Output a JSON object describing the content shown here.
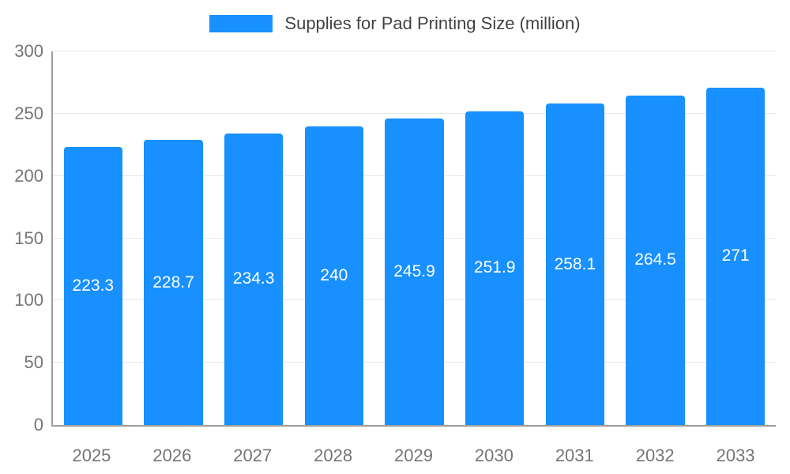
{
  "chart_data": {
    "type": "bar",
    "title": "Supplies for Pad Printing Size (million)",
    "categories": [
      "2025",
      "2026",
      "2027",
      "2028",
      "2029",
      "2030",
      "2031",
      "2032",
      "2033"
    ],
    "values": [
      223.3,
      228.7,
      234.3,
      240,
      245.9,
      251.9,
      258.1,
      264.5,
      271
    ],
    "value_labels": [
      "223.3",
      "228.7",
      "234.3",
      "240",
      "245.9",
      "251.9",
      "258.1",
      "264.5",
      "271"
    ],
    "xlabel": "",
    "ylabel": "",
    "ylim": [
      0,
      300
    ],
    "yticks": [
      0,
      50,
      100,
      150,
      200,
      250,
      300
    ],
    "grid": true,
    "legend_position": "top",
    "colors": {
      "bar": "#1890ff",
      "bar_label": "#ffffff",
      "tick_text": "#757575",
      "grid_line": "#e6e6e6",
      "axis_line": "#9e9e9e",
      "title_text": "#424242"
    }
  }
}
